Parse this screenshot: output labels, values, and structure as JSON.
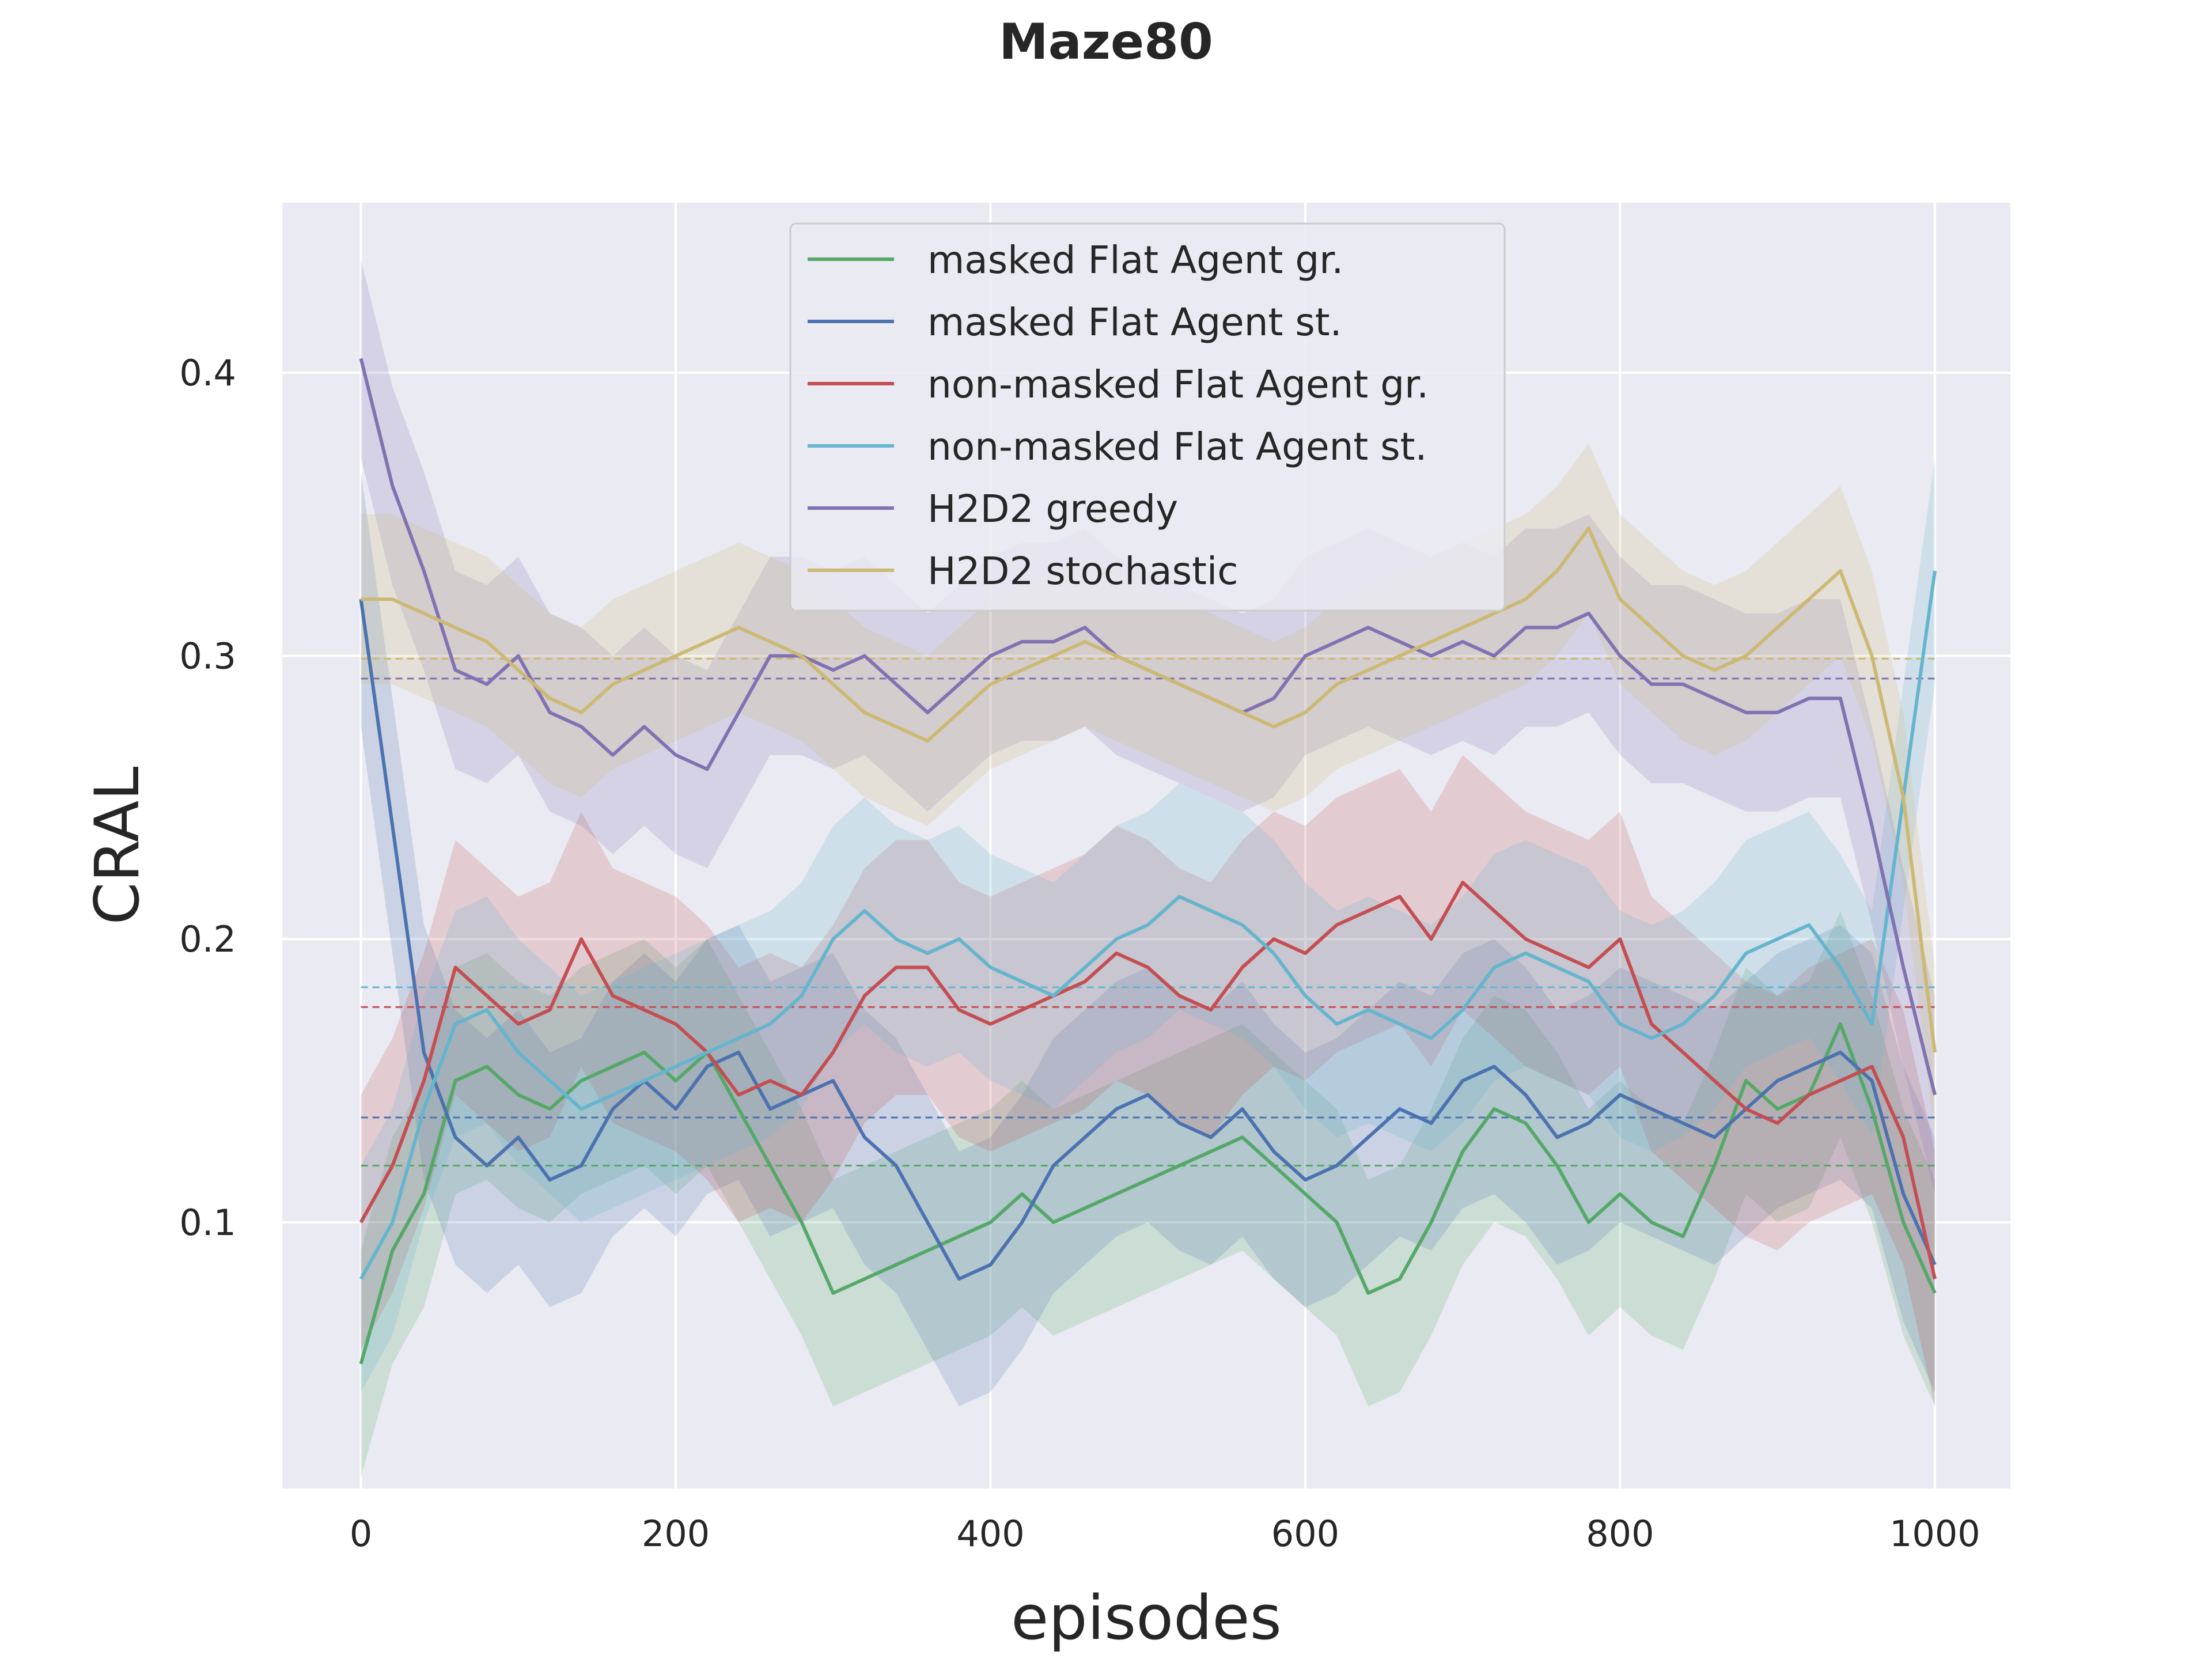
{
  "chart_data": {
    "type": "line",
    "title": "Maze80",
    "xlabel": "episodes",
    "ylabel": "CRAL",
    "xlim": [
      -50,
      1048
    ],
    "ylim": [
      0.006,
      0.46
    ],
    "xticks": [
      0,
      200,
      400,
      600,
      800,
      1000
    ],
    "xtick_labels": [
      "0",
      "200",
      "400",
      "600",
      "800",
      "1000"
    ],
    "yticks": [
      0.1,
      0.2,
      0.3,
      0.4
    ],
    "ytick_labels": [
      "0.1",
      "0.2",
      "0.3",
      "0.4"
    ],
    "grid": true,
    "legend_position": "upper center",
    "background": "#eaeaf2",
    "series": [
      {
        "name": "masked Flat Agent gr.",
        "color": "#55a868",
        "mean": 0.12,
        "band": 0.04,
        "x": [
          0,
          20,
          40,
          60,
          80,
          100,
          120,
          140,
          160,
          180,
          200,
          220,
          240,
          260,
          280,
          300,
          320,
          340,
          360,
          380,
          400,
          420,
          440,
          460,
          480,
          500,
          520,
          540,
          560,
          580,
          600,
          620,
          640,
          660,
          680,
          700,
          720,
          740,
          760,
          780,
          800,
          820,
          840,
          860,
          880,
          900,
          920,
          940,
          960,
          980,
          1000
        ],
        "y": [
          0.05,
          0.09,
          0.11,
          0.15,
          0.155,
          0.145,
          0.14,
          0.15,
          0.155,
          0.16,
          0.15,
          0.16,
          0.14,
          0.12,
          0.1,
          0.075,
          0.08,
          0.085,
          0.09,
          0.095,
          0.1,
          0.11,
          0.1,
          0.105,
          0.11,
          0.115,
          0.12,
          0.125,
          0.13,
          0.12,
          0.11,
          0.1,
          0.075,
          0.08,
          0.1,
          0.125,
          0.14,
          0.135,
          0.12,
          0.1,
          0.11,
          0.1,
          0.095,
          0.12,
          0.15,
          0.14,
          0.145,
          0.17,
          0.14,
          0.1,
          0.075
        ]
      },
      {
        "name": "masked Flat Agent st.",
        "color": "#4c72b0",
        "mean": 0.137,
        "band": 0.045,
        "x": [
          0,
          20,
          40,
          60,
          80,
          100,
          120,
          140,
          160,
          180,
          200,
          220,
          240,
          260,
          280,
          300,
          320,
          340,
          360,
          380,
          400,
          420,
          440,
          460,
          480,
          500,
          520,
          540,
          560,
          580,
          600,
          620,
          640,
          660,
          680,
          700,
          720,
          740,
          760,
          780,
          800,
          820,
          840,
          860,
          880,
          900,
          920,
          940,
          960,
          980,
          1000
        ],
        "y": [
          0.32,
          0.24,
          0.16,
          0.13,
          0.12,
          0.13,
          0.115,
          0.12,
          0.14,
          0.15,
          0.14,
          0.155,
          0.16,
          0.14,
          0.145,
          0.15,
          0.13,
          0.12,
          0.1,
          0.08,
          0.085,
          0.1,
          0.12,
          0.13,
          0.14,
          0.145,
          0.135,
          0.13,
          0.14,
          0.125,
          0.115,
          0.12,
          0.13,
          0.14,
          0.135,
          0.15,
          0.155,
          0.145,
          0.13,
          0.135,
          0.145,
          0.14,
          0.135,
          0.13,
          0.14,
          0.15,
          0.155,
          0.16,
          0.15,
          0.11,
          0.085
        ]
      },
      {
        "name": "non-masked Flat Agent gr.",
        "color": "#c44e52",
        "mean": 0.176,
        "band": 0.045,
        "x": [
          0,
          20,
          40,
          60,
          80,
          100,
          120,
          140,
          160,
          180,
          200,
          220,
          240,
          260,
          280,
          300,
          320,
          340,
          360,
          380,
          400,
          420,
          440,
          460,
          480,
          500,
          520,
          540,
          560,
          580,
          600,
          620,
          640,
          660,
          680,
          700,
          720,
          740,
          760,
          780,
          800,
          820,
          840,
          860,
          880,
          900,
          920,
          940,
          960,
          980,
          1000
        ],
        "y": [
          0.1,
          0.12,
          0.15,
          0.19,
          0.18,
          0.17,
          0.175,
          0.2,
          0.18,
          0.175,
          0.17,
          0.16,
          0.145,
          0.15,
          0.145,
          0.16,
          0.18,
          0.19,
          0.19,
          0.175,
          0.17,
          0.175,
          0.18,
          0.185,
          0.195,
          0.19,
          0.18,
          0.175,
          0.19,
          0.2,
          0.195,
          0.205,
          0.21,
          0.215,
          0.2,
          0.22,
          0.21,
          0.2,
          0.195,
          0.19,
          0.2,
          0.17,
          0.16,
          0.15,
          0.14,
          0.135,
          0.145,
          0.15,
          0.155,
          0.13,
          0.08
        ]
      },
      {
        "name": "non-masked Flat Agent st.",
        "color": "#64b5cd",
        "mean": 0.183,
        "band": 0.04,
        "x": [
          0,
          20,
          40,
          60,
          80,
          100,
          120,
          140,
          160,
          180,
          200,
          220,
          240,
          260,
          280,
          300,
          320,
          340,
          360,
          380,
          400,
          420,
          440,
          460,
          480,
          500,
          520,
          540,
          560,
          580,
          600,
          620,
          640,
          660,
          680,
          700,
          720,
          740,
          760,
          780,
          800,
          820,
          840,
          860,
          880,
          900,
          920,
          940,
          960,
          980,
          1000
        ],
        "y": [
          0.08,
          0.1,
          0.14,
          0.17,
          0.175,
          0.16,
          0.15,
          0.14,
          0.145,
          0.15,
          0.155,
          0.16,
          0.165,
          0.17,
          0.18,
          0.2,
          0.21,
          0.2,
          0.195,
          0.2,
          0.19,
          0.185,
          0.18,
          0.19,
          0.2,
          0.205,
          0.215,
          0.21,
          0.205,
          0.195,
          0.18,
          0.17,
          0.175,
          0.17,
          0.165,
          0.175,
          0.19,
          0.195,
          0.19,
          0.185,
          0.17,
          0.165,
          0.17,
          0.18,
          0.195,
          0.2,
          0.205,
          0.19,
          0.17,
          0.25,
          0.33
        ]
      },
      {
        "name": "H2D2 greedy",
        "color": "#8172b2",
        "mean": 0.292,
        "band": 0.035,
        "x": [
          0,
          20,
          40,
          60,
          80,
          100,
          120,
          140,
          160,
          180,
          200,
          220,
          240,
          260,
          280,
          300,
          320,
          340,
          360,
          380,
          400,
          420,
          440,
          460,
          480,
          500,
          520,
          540,
          560,
          580,
          600,
          620,
          640,
          660,
          680,
          700,
          720,
          740,
          760,
          780,
          800,
          820,
          840,
          860,
          880,
          900,
          920,
          940,
          960,
          980,
          1000
        ],
        "y": [
          0.405,
          0.36,
          0.33,
          0.295,
          0.29,
          0.3,
          0.28,
          0.275,
          0.265,
          0.275,
          0.265,
          0.26,
          0.28,
          0.3,
          0.3,
          0.295,
          0.3,
          0.29,
          0.28,
          0.29,
          0.3,
          0.305,
          0.305,
          0.31,
          0.3,
          0.295,
          0.29,
          0.285,
          0.28,
          0.285,
          0.3,
          0.305,
          0.31,
          0.305,
          0.3,
          0.305,
          0.3,
          0.31,
          0.31,
          0.315,
          0.3,
          0.29,
          0.29,
          0.285,
          0.28,
          0.28,
          0.285,
          0.285,
          0.24,
          0.19,
          0.145
        ]
      },
      {
        "name": "H2D2 stochastic",
        "color": "#ccb974",
        "mean": 0.299,
        "band": 0.03,
        "x": [
          0,
          20,
          40,
          60,
          80,
          100,
          120,
          140,
          160,
          180,
          200,
          220,
          240,
          260,
          280,
          300,
          320,
          340,
          360,
          380,
          400,
          420,
          440,
          460,
          480,
          500,
          520,
          540,
          560,
          580,
          600,
          620,
          640,
          660,
          680,
          700,
          720,
          740,
          760,
          780,
          800,
          820,
          840,
          860,
          880,
          900,
          920,
          940,
          960,
          980,
          1000
        ],
        "y": [
          0.32,
          0.32,
          0.315,
          0.31,
          0.305,
          0.295,
          0.285,
          0.28,
          0.29,
          0.295,
          0.3,
          0.305,
          0.31,
          0.305,
          0.3,
          0.29,
          0.28,
          0.275,
          0.27,
          0.28,
          0.29,
          0.295,
          0.3,
          0.305,
          0.3,
          0.295,
          0.29,
          0.285,
          0.28,
          0.275,
          0.28,
          0.29,
          0.295,
          0.3,
          0.305,
          0.31,
          0.315,
          0.32,
          0.33,
          0.345,
          0.32,
          0.31,
          0.3,
          0.295,
          0.3,
          0.31,
          0.32,
          0.33,
          0.3,
          0.25,
          0.16
        ]
      }
    ]
  }
}
